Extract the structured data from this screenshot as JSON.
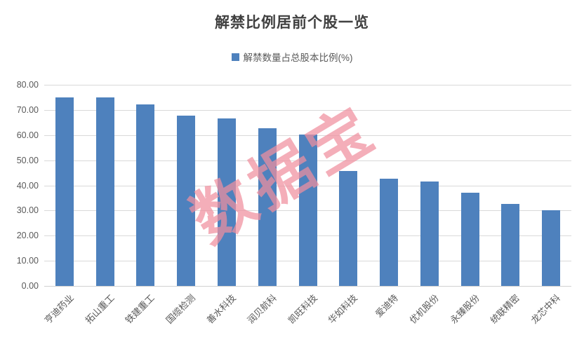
{
  "title": "解禁比例居前个股一览",
  "legend": {
    "label": "解禁数量占总股本比例(%)"
  },
  "watermark": {
    "text": "数据宝"
  },
  "colors": {
    "bar": "#4E81BD",
    "gridline": "#D9D9D9",
    "axis_line": "#D0D0D0",
    "axis_text": "#595959",
    "title_text": "#404040",
    "watermark": "#F0909F"
  },
  "chart_data": {
    "type": "bar",
    "title": "解禁比例居前个股一览",
    "series_name": "解禁数量占总股本比例(%)",
    "categories": [
      "亨迪药业",
      "拓山重工",
      "铁建重工",
      "国缆检测",
      "善水科技",
      "润贝航科",
      "凯旺科技",
      "华如科技",
      "爱迪特",
      "优机股份",
      "永臻股份",
      "统联精密",
      "龙芯中科"
    ],
    "values": [
      75.0,
      75.0,
      72.3,
      67.8,
      66.7,
      62.8,
      60.3,
      45.7,
      42.6,
      41.5,
      37.1,
      32.6,
      30.0
    ],
    "xlabel": "",
    "ylabel": "",
    "ylim": [
      0,
      80
    ],
    "ytick_step": 10,
    "y_ticks": [
      "0.00",
      "10.00",
      "20.00",
      "30.00",
      "40.00",
      "50.00",
      "60.00",
      "70.00",
      "80.00"
    ],
    "grid": "horizontal",
    "legend_position": "top-center"
  }
}
